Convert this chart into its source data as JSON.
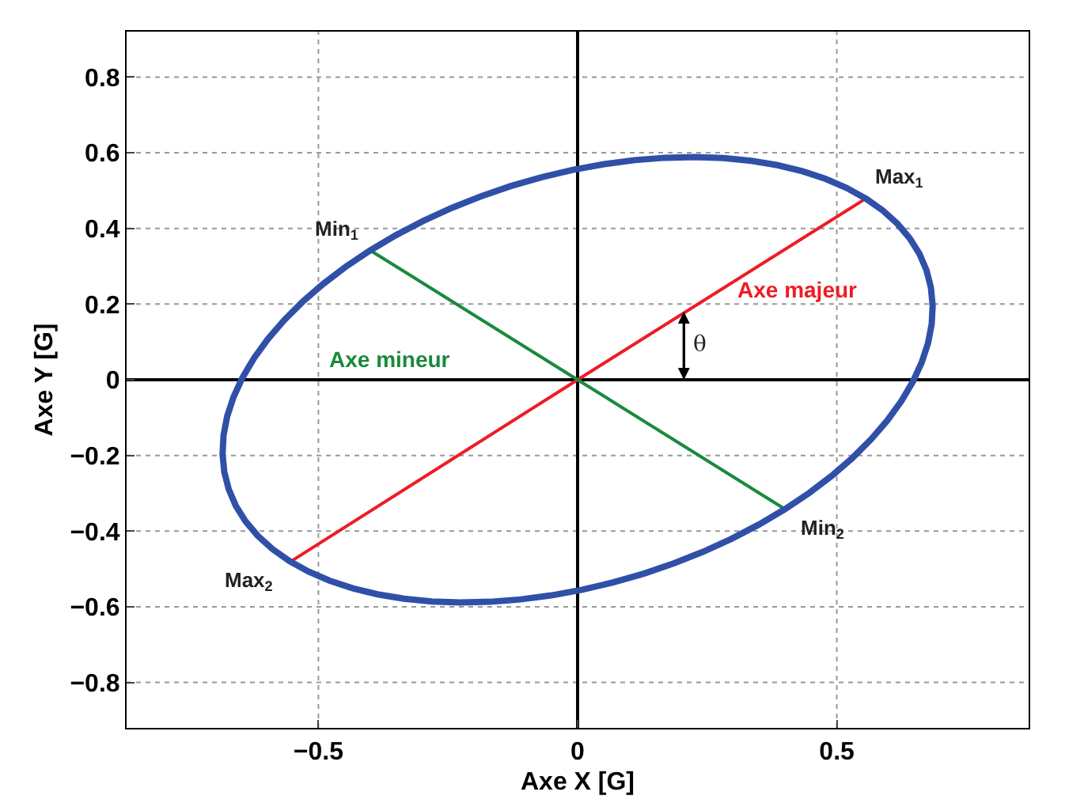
{
  "chart_data": {
    "type": "line",
    "xlabel": "Axe X [G]",
    "ylabel": "Axe Y [G]",
    "xlim": [
      -0.87,
      0.87
    ],
    "ylim": [
      -0.92,
      0.92
    ],
    "xticks": [
      {
        "value": -0.5,
        "label": "−0.5"
      },
      0,
      0.5
    ],
    "yticks": [
      {
        "value": -0.8,
        "label": "−0.8"
      },
      {
        "value": -0.6,
        "label": "−0.6"
      },
      {
        "value": -0.4,
        "label": "−0.4"
      },
      {
        "value": -0.2,
        "label": "−0.2"
      },
      0,
      0.2,
      0.4,
      0.6,
      0.8
    ],
    "grid": true,
    "legend": false,
    "marker": "none",
    "line_style": "solid",
    "series": [
      {
        "name": "Axe majeur",
        "color": "#ee1c24",
        "x": [
          0.556,
          0,
          -0.552
        ],
        "values": [
          0.479,
          0,
          -0.479
        ]
      },
      {
        "name": "Axe mineur",
        "color": "#1a8a3c",
        "x": [
          -0.4,
          0,
          0.4
        ],
        "values": [
          0.342,
          0,
          -0.342
        ]
      }
    ],
    "annotations": [
      {
        "text": "Max$_{1}$",
        "x": 0.556,
        "y": 0.479
      },
      {
        "text": "Min$_{1}$",
        "x": -0.4,
        "y": 0.342
      },
      {
        "text": "Max$_{2}$",
        "x": -0.552,
        "y": -0.479
      },
      {
        "text": "Min$_{2}$",
        "x": 0.4,
        "y": -0.342
      },
      {
        "text": "θ",
        "x": 0.205,
        "y": 0.18
      }
    ]
  }
}
